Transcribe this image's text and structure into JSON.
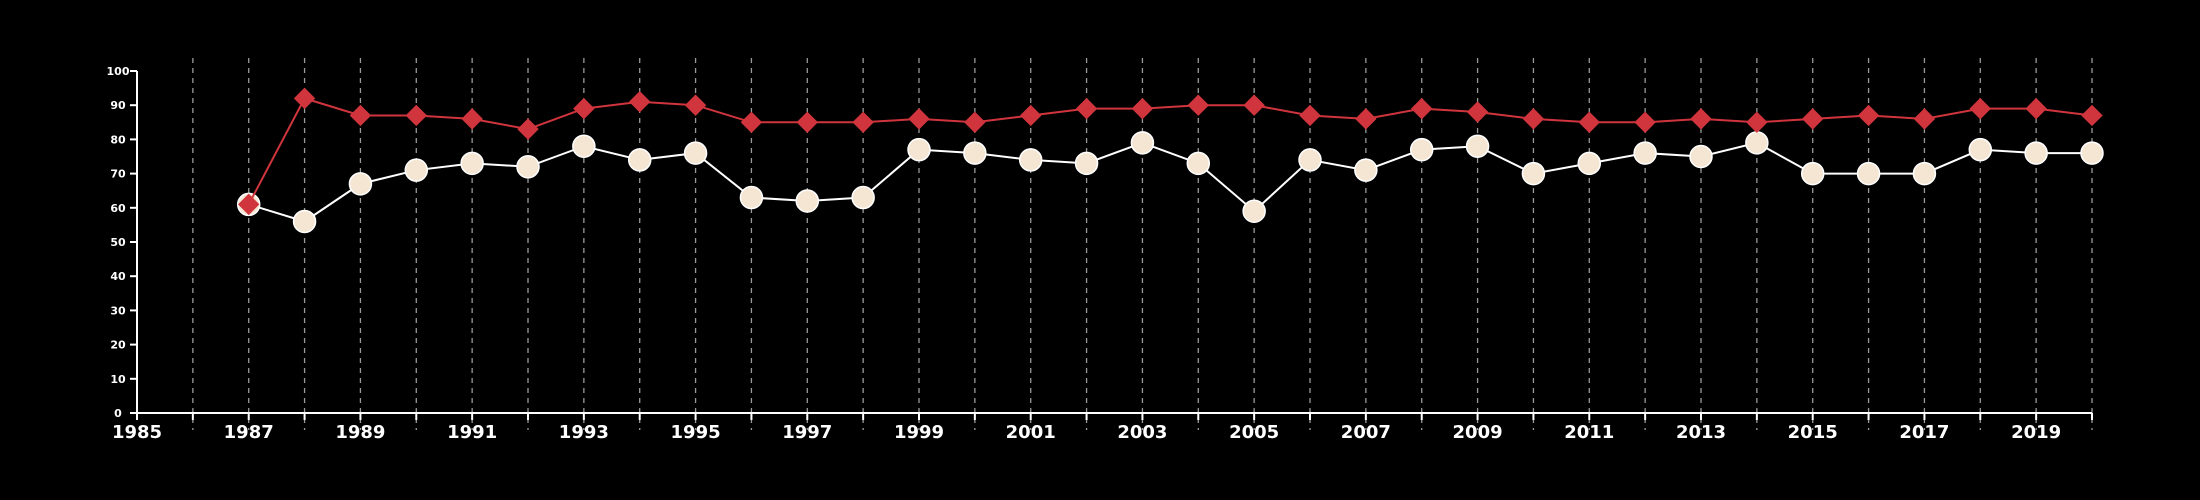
{
  "chart_data": {
    "type": "line",
    "title": "",
    "xlabel": "",
    "ylabel": "",
    "xlim": [
      1985,
      2020
    ],
    "ylim": [
      0,
      100
    ],
    "grid": "vertical dashed",
    "legend": "none",
    "x_ticks": [
      "1985",
      "1987",
      "1989",
      "1991",
      "1993",
      "1995",
      "1997",
      "1999",
      "2001",
      "2003",
      "2005",
      "2007",
      "2009",
      "2011",
      "2013",
      "2015",
      "2017",
      "2019"
    ],
    "y_ticks": [
      "0",
      "10",
      "20",
      "30",
      "40",
      "50",
      "60",
      "70",
      "80",
      "90",
      "100"
    ],
    "x": [
      1987,
      1988,
      1989,
      1990,
      1991,
      1992,
      1993,
      1994,
      1995,
      1996,
      1997,
      1998,
      1999,
      2000,
      2001,
      2002,
      2003,
      2004,
      2005,
      2006,
      2007,
      2008,
      2009,
      2010,
      2011,
      2012,
      2013,
      2014,
      2015,
      2016,
      2017,
      2018,
      2019,
      2020
    ],
    "series": [
      {
        "color": "#d0353d",
        "marker": "diamond",
        "values": [
          61,
          92,
          87,
          87,
          86,
          83,
          89,
          91,
          90,
          85,
          85,
          85,
          86,
          85,
          87,
          89,
          89,
          90,
          90,
          87,
          86,
          89,
          88,
          86,
          85,
          85,
          86,
          85,
          86,
          87,
          86,
          89,
          89,
          87
        ]
      },
      {
        "color": "#f5e6d3",
        "line_color": "#ffffff",
        "marker": "circle",
        "values": [
          61,
          56,
          67,
          71,
          73,
          72,
          78,
          74,
          76,
          63,
          62,
          63,
          77,
          76,
          74,
          73,
          79,
          73,
          59,
          74,
          71,
          77,
          78,
          70,
          73,
          76,
          75,
          79,
          70,
          70,
          70,
          77,
          76,
          76
        ]
      }
    ]
  }
}
